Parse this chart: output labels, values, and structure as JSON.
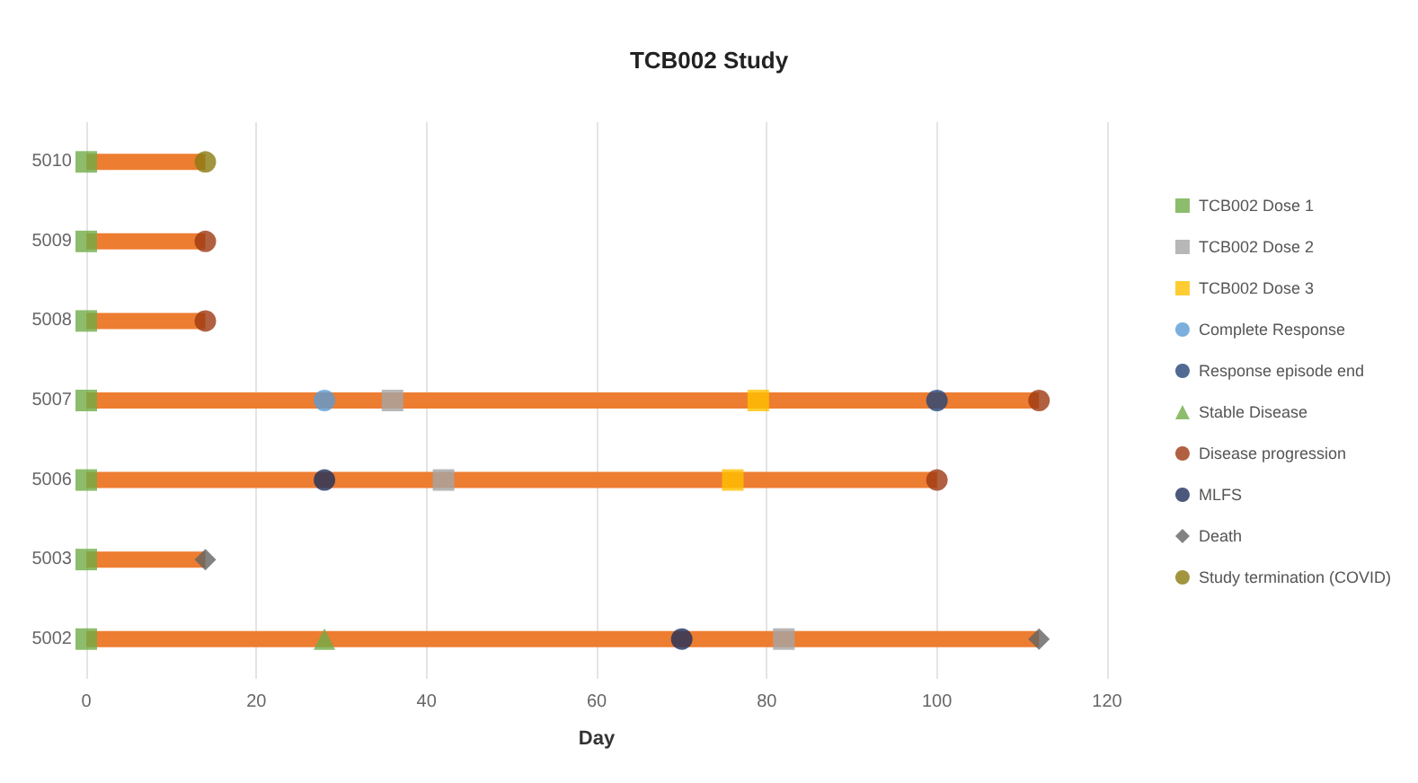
{
  "chart_data": {
    "type": "bar",
    "orientation": "horizontal",
    "title": "TCB002 Study",
    "xlabel": "Day",
    "categories": [
      "5010",
      "5009",
      "5008",
      "5007",
      "5006",
      "5003",
      "5002"
    ],
    "xlim": [
      0,
      120
    ],
    "xticks": [
      0,
      20,
      40,
      60,
      80,
      100,
      120
    ],
    "grid": "x",
    "legend": "right",
    "series": [
      {
        "color": "#ed7d31",
        "values": [
          14,
          14,
          14,
          112,
          100,
          14,
          112
        ]
      },
      {
        "type": "scatter",
        "name": "TCB002 Dose 1",
        "color": "#70ad47",
        "marker": "square",
        "values": [
          0,
          0,
          0,
          0,
          0,
          0,
          0
        ]
      },
      {
        "type": "scatter",
        "name": "TCB002 Dose 2",
        "color": "#a5a5a5",
        "marker": "square",
        "values": [
          null,
          null,
          null,
          36,
          42,
          null,
          82
        ]
      },
      {
        "type": "scatter",
        "name": "TCB002 Dose 3",
        "color": "#ffc000",
        "marker": "square",
        "values": [
          null,
          null,
          null,
          79,
          76,
          null,
          null
        ]
      },
      {
        "type": "scatter",
        "name": "Complete Response",
        "color": "#5b9bd5",
        "marker": "circle",
        "values": [
          null,
          null,
          null,
          28,
          null,
          null,
          null
        ]
      },
      {
        "type": "scatter",
        "name": "Response episode end",
        "color": "#264478",
        "marker": "circle",
        "values": [
          null,
          null,
          null,
          100,
          null,
          null,
          null
        ]
      },
      {
        "type": "scatter",
        "name": "Stable Disease",
        "color": "#70ad47",
        "marker": "triangle",
        "values": [
          null,
          null,
          null,
          null,
          null,
          null,
          28
        ]
      },
      {
        "type": "scatter",
        "name": "Disease progression",
        "color": "#9e3a13",
        "marker": "circle",
        "values": [
          null,
          14,
          14,
          112,
          100,
          null,
          null
        ]
      },
      {
        "type": "scatter",
        "name": "MLFS",
        "color": "#1f2f5c",
        "marker": "circle",
        "values": [
          null,
          null,
          null,
          null,
          28,
          null,
          70
        ]
      },
      {
        "type": "scatter",
        "name": "Death",
        "color": "#636363",
        "marker": "diamond",
        "values": [
          null,
          null,
          null,
          null,
          null,
          14,
          112
        ]
      },
      {
        "type": "scatter",
        "name": "Study termination (COVID)",
        "color": "#8a7a10",
        "marker": "circle",
        "values": [
          14,
          null,
          null,
          null,
          null,
          null,
          null
        ]
      }
    ]
  }
}
